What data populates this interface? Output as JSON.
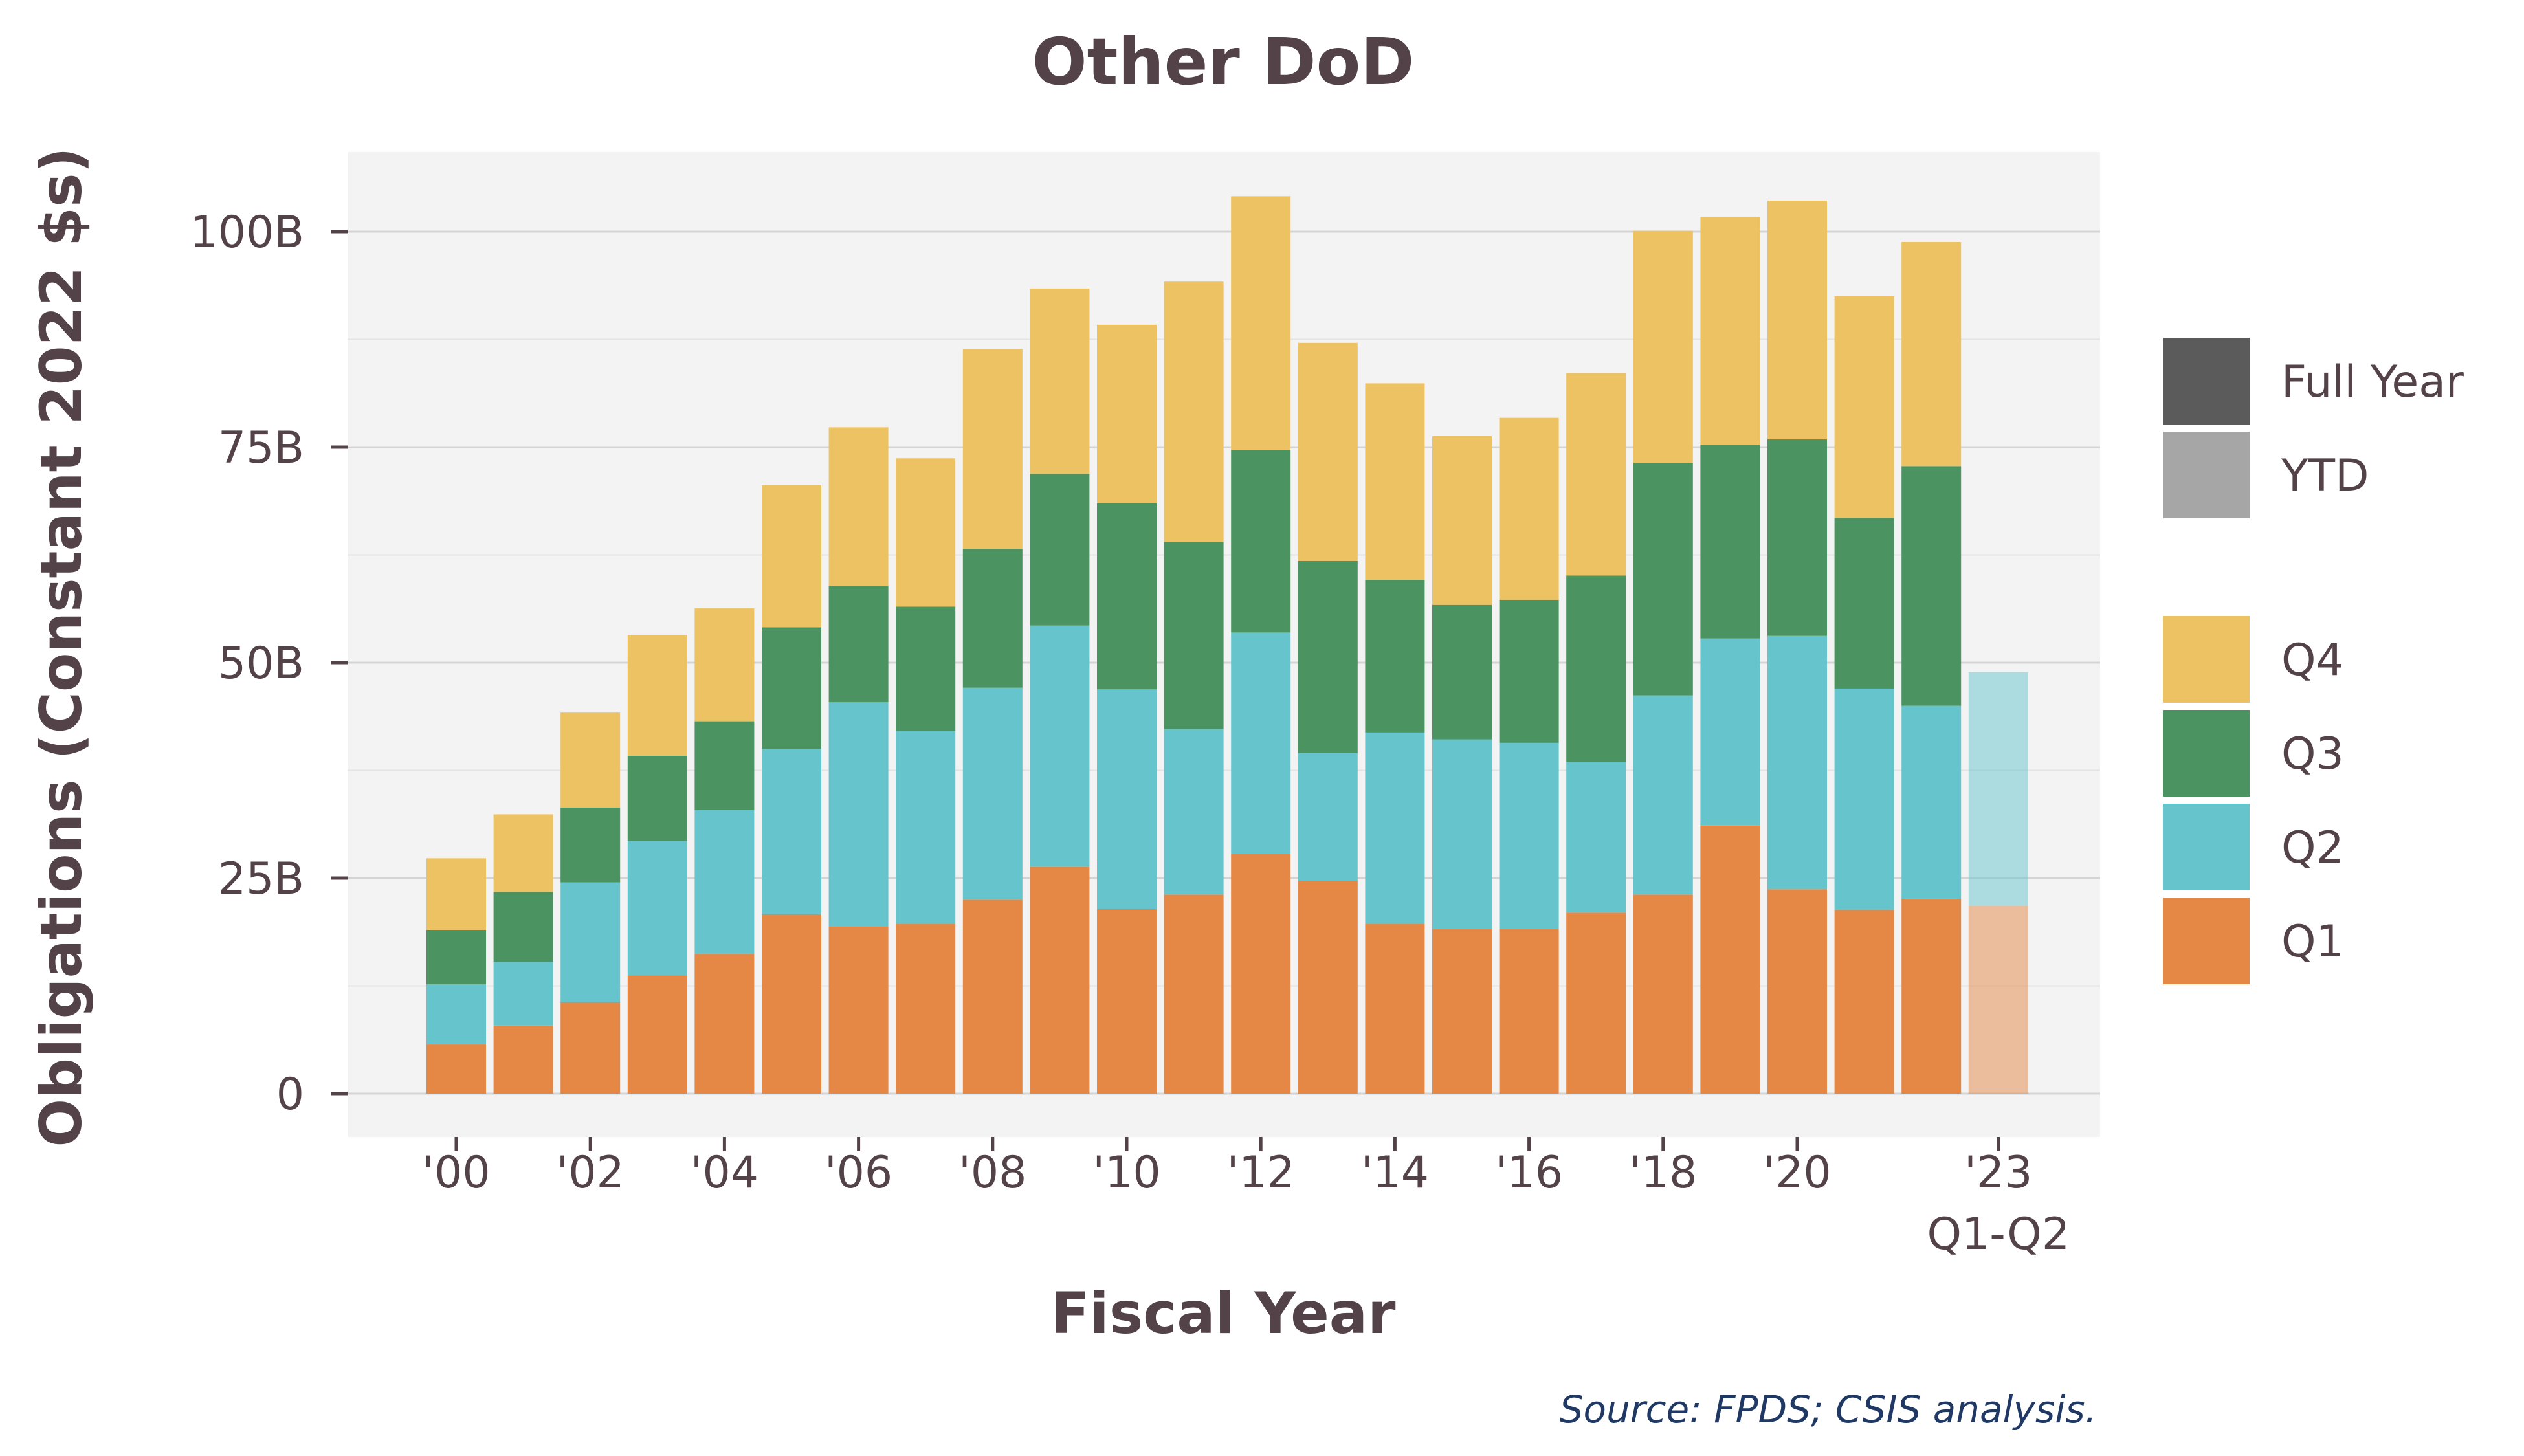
{
  "chart_data": {
    "type": "bar",
    "stacked": true,
    "title": "Other DoD",
    "xlabel": "Fiscal Year",
    "ylabel": "Obligations (Constant 2022 $s)",
    "source": "Source: FPDS; CSIS analysis.",
    "ylim": [
      0,
      108
    ],
    "yticks": [
      {
        "value": 0,
        "label": "0"
      },
      {
        "value": 25,
        "label": "25B"
      },
      {
        "value": 50,
        "label": "50B"
      },
      {
        "value": 75,
        "label": "75B"
      },
      {
        "value": 100,
        "label": "100B"
      }
    ],
    "categories": [
      "2000",
      "2001",
      "2002",
      "2003",
      "2004",
      "2005",
      "2006",
      "2007",
      "2008",
      "2009",
      "2010",
      "2011",
      "2012",
      "2013",
      "2014",
      "2015",
      "2016",
      "2017",
      "2018",
      "2019",
      "2020",
      "2021",
      "2022",
      "2023"
    ],
    "tick_labels": [
      {
        "index": 0,
        "label": "'00"
      },
      {
        "index": 2,
        "label": "'02"
      },
      {
        "index": 4,
        "label": "'04"
      },
      {
        "index": 6,
        "label": "'06"
      },
      {
        "index": 8,
        "label": "'08"
      },
      {
        "index": 10,
        "label": "'10"
      },
      {
        "index": 12,
        "label": "'12"
      },
      {
        "index": 14,
        "label": "'14"
      },
      {
        "index": 16,
        "label": "'16"
      },
      {
        "index": 18,
        "label": "'18"
      },
      {
        "index": 20,
        "label": "'20"
      },
      {
        "index": 23,
        "label": "'23",
        "sublabel": "Q1-Q2"
      }
    ],
    "ytd_categories": [
      "2023"
    ],
    "series": [
      {
        "name": "Q1",
        "color": "#e58846",
        "values": [
          5.7,
          7.9,
          10.6,
          13.7,
          16.2,
          20.8,
          19.4,
          19.7,
          22.5,
          26.3,
          21.4,
          23.1,
          27.8,
          24.7,
          19.7,
          19.1,
          19.1,
          21.0,
          23.1,
          31.1,
          23.7,
          21.3,
          22.6,
          21.8
        ]
      },
      {
        "name": "Q2",
        "color": "#66c5cc",
        "values": [
          7.0,
          7.4,
          13.9,
          15.6,
          16.7,
          19.2,
          26.0,
          22.4,
          24.6,
          28.0,
          25.5,
          19.2,
          25.7,
          14.8,
          22.2,
          22.0,
          21.6,
          17.5,
          23.1,
          21.7,
          29.4,
          25.7,
          22.4,
          27.1
        ]
      },
      {
        "name": "Q3",
        "color": "#4b9461",
        "values": [
          6.3,
          8.1,
          8.7,
          9.9,
          10.3,
          14.1,
          13.5,
          14.4,
          16.1,
          17.6,
          21.6,
          21.7,
          21.2,
          22.3,
          17.7,
          15.6,
          16.6,
          21.6,
          27.0,
          22.5,
          22.8,
          19.8,
          27.8,
          0
        ]
      },
      {
        "name": "Q4",
        "color": "#edc263",
        "values": [
          8.3,
          9.0,
          11.0,
          14.0,
          13.1,
          16.5,
          18.4,
          17.2,
          23.2,
          21.5,
          20.7,
          30.2,
          29.4,
          25.3,
          22.8,
          19.6,
          21.1,
          23.5,
          26.9,
          26.4,
          27.7,
          25.7,
          26.0,
          0
        ]
      }
    ],
    "legend": {
      "placement": "right",
      "period": [
        {
          "label": "Full Year",
          "color": "#5b5b5b"
        },
        {
          "label": "YTD",
          "color": "#a6a6a6"
        }
      ],
      "quarters": [
        {
          "label": "Q4",
          "color": "#edc263"
        },
        {
          "label": "Q3",
          "color": "#4b9461"
        },
        {
          "label": "Q2",
          "color": "#66c5cc"
        },
        {
          "label": "Q1",
          "color": "#e58846"
        }
      ]
    },
    "grid": true,
    "colors": {
      "panel": "#f3f3f3",
      "grid": "#d9d9d9",
      "text": "#534348"
    }
  }
}
